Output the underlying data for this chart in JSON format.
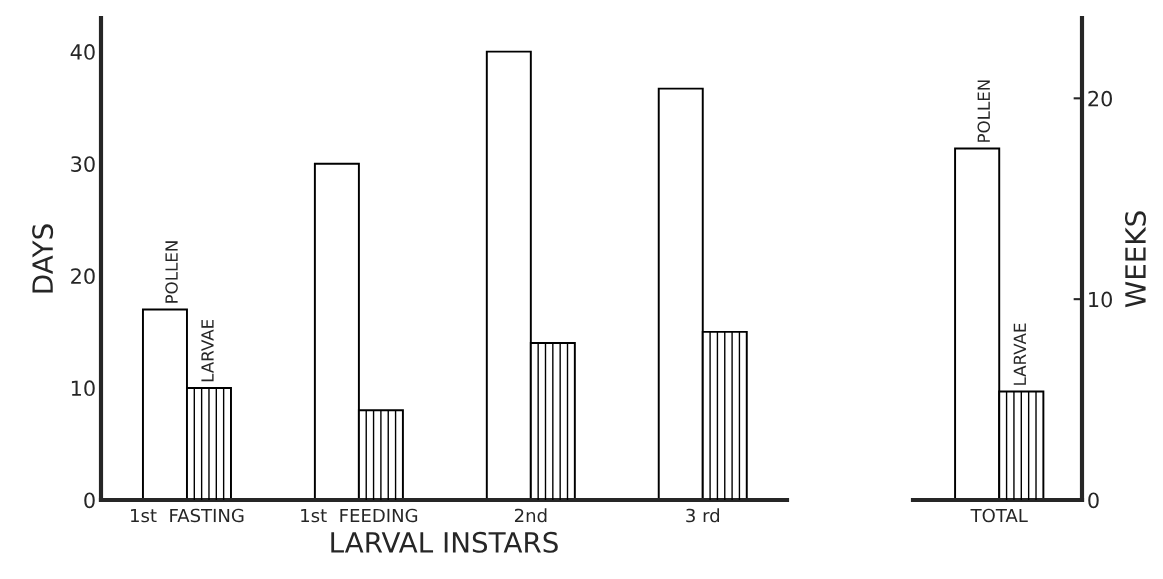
{
  "chart_data": [
    {
      "type": "bar",
      "ylabel": "DAYS",
      "xlabel": "LARVAL INSTARS",
      "categories": [
        "1st  FASTING",
        "1st  FEEDING",
        "2nd",
        "3 rd"
      ],
      "ylim": [
        0,
        43
      ],
      "yticks": [
        0,
        10,
        20,
        30,
        40
      ],
      "grid": false,
      "legend": false,
      "series": [
        {
          "name": "POLLEN",
          "color": "#ffffff",
          "values": [
            17,
            30,
            40,
            36.7
          ]
        },
        {
          "name": "LARVAE",
          "color": "#ffffff",
          "values": [
            10,
            8,
            14,
            15
          ]
        }
      ]
    },
    {
      "type": "bar",
      "ylabel": "WEEKS",
      "categories": [
        "TOTAL"
      ],
      "ylim": [
        0,
        24
      ],
      "yticks": [
        0,
        10,
        20
      ],
      "grid": false,
      "legend": false,
      "series": [
        {
          "name": "POLLEN",
          "color": "#ffffff",
          "values": [
            17.5
          ]
        },
        {
          "name": "LARVAE",
          "color": "#ffffff",
          "values": [
            5.4
          ]
        }
      ]
    }
  ]
}
